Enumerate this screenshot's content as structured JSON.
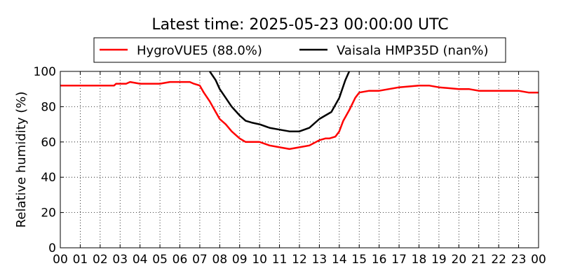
{
  "chart_data": {
    "type": "line",
    "title": "Latest time: 2025-05-23 00:00:00 UTC",
    "xlabel": "",
    "ylabel": "Relative humidity (%)",
    "xlim": [
      0,
      24
    ],
    "ylim": [
      0,
      100
    ],
    "x_ticks": [
      "00",
      "01",
      "02",
      "03",
      "04",
      "05",
      "06",
      "07",
      "08",
      "09",
      "10",
      "11",
      "12",
      "13",
      "14",
      "15",
      "16",
      "17",
      "18",
      "19",
      "20",
      "21",
      "22",
      "23",
      "00"
    ],
    "y_ticks": [
      0,
      20,
      40,
      60,
      80,
      100
    ],
    "grid": true,
    "legend_position": "top-center",
    "series": [
      {
        "name": "HygroVUE5 (88.0%)",
        "color": "#ff0000",
        "x": [
          0,
          1,
          2,
          2.7,
          2.8,
          3.3,
          3.5,
          4,
          5,
          5.5,
          6,
          6.5,
          6.7,
          7,
          7.2,
          7.5,
          7.8,
          8,
          8.3,
          8.6,
          9,
          9.3,
          9.6,
          10,
          10.5,
          11,
          11.5,
          12,
          12.5,
          13,
          13.3,
          13.5,
          13.8,
          14,
          14.2,
          14.5,
          14.8,
          15,
          15.5,
          16,
          16.5,
          17,
          18,
          18.5,
          19,
          20,
          20.5,
          21,
          21.5,
          22,
          22.5,
          23,
          23.5,
          24
        ],
        "y": [
          92,
          92,
          92,
          92,
          93,
          93,
          94,
          93,
          93,
          94,
          94,
          94,
          93,
          92,
          88,
          83,
          77,
          73,
          70,
          66,
          62,
          60,
          60,
          60,
          58,
          57,
          56,
          57,
          58,
          61,
          62,
          62,
          63,
          66,
          72,
          78,
          85,
          88,
          89,
          89,
          90,
          91,
          92,
          92,
          91,
          90,
          90,
          89,
          89,
          89,
          89,
          89,
          88,
          88
        ]
      },
      {
        "name": "Vaisala HMP35D (nan%)",
        "color": "#000000",
        "x": [
          7.5,
          7.8,
          8,
          8.3,
          8.6,
          9,
          9.3,
          9.6,
          10,
          10.5,
          11,
          11.5,
          12,
          12.5,
          13,
          13.3,
          13.6,
          14,
          14.3,
          14.5
        ],
        "y": [
          100,
          95,
          90,
          85,
          80,
          75,
          72,
          71,
          70,
          68,
          67,
          66,
          66,
          68,
          73,
          75,
          77,
          85,
          95,
          100
        ]
      }
    ]
  }
}
